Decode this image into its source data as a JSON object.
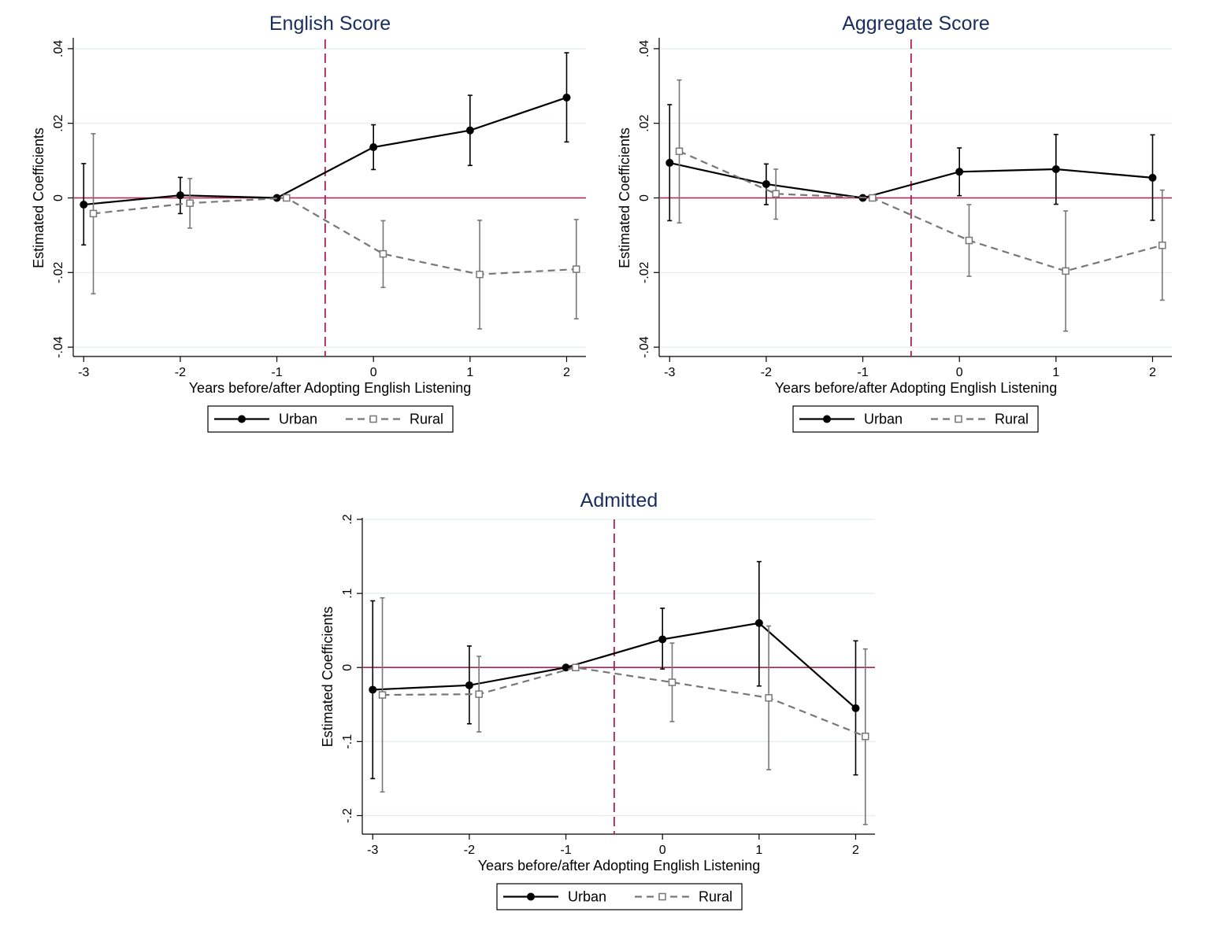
{
  "chart_data": [
    {
      "type": "line",
      "title": "English Score",
      "xlabel": "Years before/after Adopting English Listening",
      "ylabel": "Estimated Coefficients",
      "x": [
        -3,
        -2,
        -1,
        0,
        1,
        2
      ],
      "x_tick_labels": [
        "-3",
        "-2",
        "-1",
        "0",
        "1",
        "2"
      ],
      "y_ticks": [
        -0.04,
        -0.02,
        0,
        0.02,
        0.04
      ],
      "y_tick_labels": [
        "-.04",
        "-.02",
        "0",
        ".02",
        ".04"
      ],
      "ylim": [
        -0.0425,
        0.0425
      ],
      "xlim": [
        -3.1,
        2.2
      ],
      "reference_vline_x": -0.5,
      "reference_hline_y": 0,
      "grid": true,
      "legend_position": "bottom",
      "series": [
        {
          "name": "Urban",
          "style": "solid-circle",
          "color": "#000000",
          "values": [
            -0.0018,
            0.0007,
            0,
            0.0136,
            0.0181,
            0.0269
          ],
          "ci_low": [
            -0.0126,
            -0.0042,
            0,
            0.0076,
            0.0087,
            0.015
          ],
          "ci_high": [
            0.0092,
            0.0055,
            0,
            0.0196,
            0.0275,
            0.0389
          ]
        },
        {
          "name": "Rural",
          "style": "dashed-square",
          "color": "#777777",
          "values": [
            -0.0042,
            -0.0014,
            0,
            -0.015,
            -0.0205,
            -0.0191
          ],
          "ci_low": [
            -0.0257,
            -0.0081,
            0,
            -0.024,
            -0.0351,
            -0.0324
          ],
          "ci_high": [
            0.0172,
            0.0052,
            0,
            -0.0061,
            -0.006,
            -0.0058
          ]
        }
      ]
    },
    {
      "type": "line",
      "title": "Aggregate Score",
      "xlabel": "Years before/after Adopting English Listening",
      "ylabel": "Estimated Coefficients",
      "x": [
        -3,
        -2,
        -1,
        0,
        1,
        2
      ],
      "x_tick_labels": [
        "-3",
        "-2",
        "-1",
        "0",
        "1",
        "2"
      ],
      "y_ticks": [
        -0.04,
        -0.02,
        0,
        0.02,
        0.04
      ],
      "y_tick_labels": [
        "-.04",
        "-.02",
        "0",
        ".02",
        ".04"
      ],
      "ylim": [
        -0.0425,
        0.0425
      ],
      "xlim": [
        -3.1,
        2.2
      ],
      "reference_vline_x": -0.5,
      "reference_hline_y": 0,
      "grid": true,
      "legend_position": "bottom",
      "series": [
        {
          "name": "Urban",
          "style": "solid-circle",
          "color": "#000000",
          "values": [
            0.0094,
            0.0037,
            0,
            0.007,
            0.0077,
            0.0054
          ],
          "ci_low": [
            -0.0061,
            -0.0018,
            0,
            0.0006,
            -0.0017,
            -0.006
          ],
          "ci_high": [
            0.025,
            0.0091,
            0,
            0.0134,
            0.017,
            0.0169
          ]
        },
        {
          "name": "Rural",
          "style": "dashed-square",
          "color": "#777777",
          "values": [
            0.0125,
            0.0011,
            0,
            -0.0114,
            -0.0196,
            -0.0127
          ],
          "ci_low": [
            -0.0067,
            -0.0057,
            0,
            -0.021,
            -0.0357,
            -0.0274
          ],
          "ci_high": [
            0.0316,
            0.0077,
            0,
            -0.0018,
            -0.0035,
            0.0021
          ]
        }
      ]
    },
    {
      "type": "line",
      "title": "Admitted",
      "xlabel": "Years before/after Adopting English Listening",
      "ylabel": "Estimated Coefficients",
      "x": [
        -3,
        -2,
        -1,
        0,
        1,
        2
      ],
      "x_tick_labels": [
        "-3",
        "-2",
        "-1",
        "0",
        "1",
        "2"
      ],
      "y_ticks": [
        -0.2,
        -0.1,
        0,
        0.1,
        0.2
      ],
      "y_tick_labels": [
        "-.2",
        "-.1",
        "0",
        ".1",
        ".2"
      ],
      "ylim": [
        -0.225,
        0.2
      ],
      "xlim": [
        -3.1,
        2.2
      ],
      "reference_vline_x": -0.5,
      "reference_hline_y": 0,
      "grid": true,
      "legend_position": "bottom",
      "series": [
        {
          "name": "Urban",
          "style": "solid-circle",
          "color": "#000000",
          "values": [
            -0.03,
            -0.024,
            0,
            0.038,
            0.06,
            -0.055
          ],
          "ci_low": [
            -0.15,
            -0.076,
            0,
            -0.002,
            -0.025,
            -0.145
          ],
          "ci_high": [
            0.09,
            0.029,
            0,
            0.08,
            0.143,
            0.036
          ]
        },
        {
          "name": "Rural",
          "style": "dashed-square",
          "color": "#777777",
          "values": [
            -0.037,
            -0.036,
            0,
            -0.02,
            -0.041,
            -0.093
          ],
          "ci_low": [
            -0.168,
            -0.087,
            0,
            -0.073,
            -0.138,
            -0.212
          ],
          "ci_high": [
            0.094,
            0.015,
            0,
            0.033,
            0.056,
            0.025
          ]
        }
      ]
    }
  ]
}
